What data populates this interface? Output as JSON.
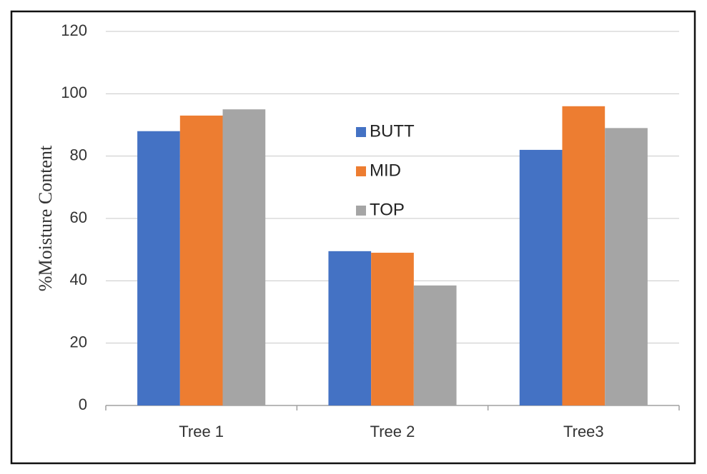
{
  "chart_data": {
    "type": "bar",
    "y_label": "%Moisture Content",
    "categories": [
      "Tree 1",
      "Tree 2",
      "Tree3"
    ],
    "series": [
      {
        "name": "BUTT",
        "color": "#4472c4",
        "values": [
          88,
          49.5,
          82
        ]
      },
      {
        "name": "MID",
        "color": "#ed7d31",
        "values": [
          93,
          49,
          96
        ]
      },
      {
        "name": "TOP",
        "color": "#a5a5a5",
        "values": [
          95,
          38.5,
          89
        ]
      }
    ],
    "ylim": [
      0,
      120
    ],
    "yticks": [
      0,
      20,
      40,
      60,
      80,
      100,
      120
    ],
    "grid": true,
    "legend": "center"
  }
}
